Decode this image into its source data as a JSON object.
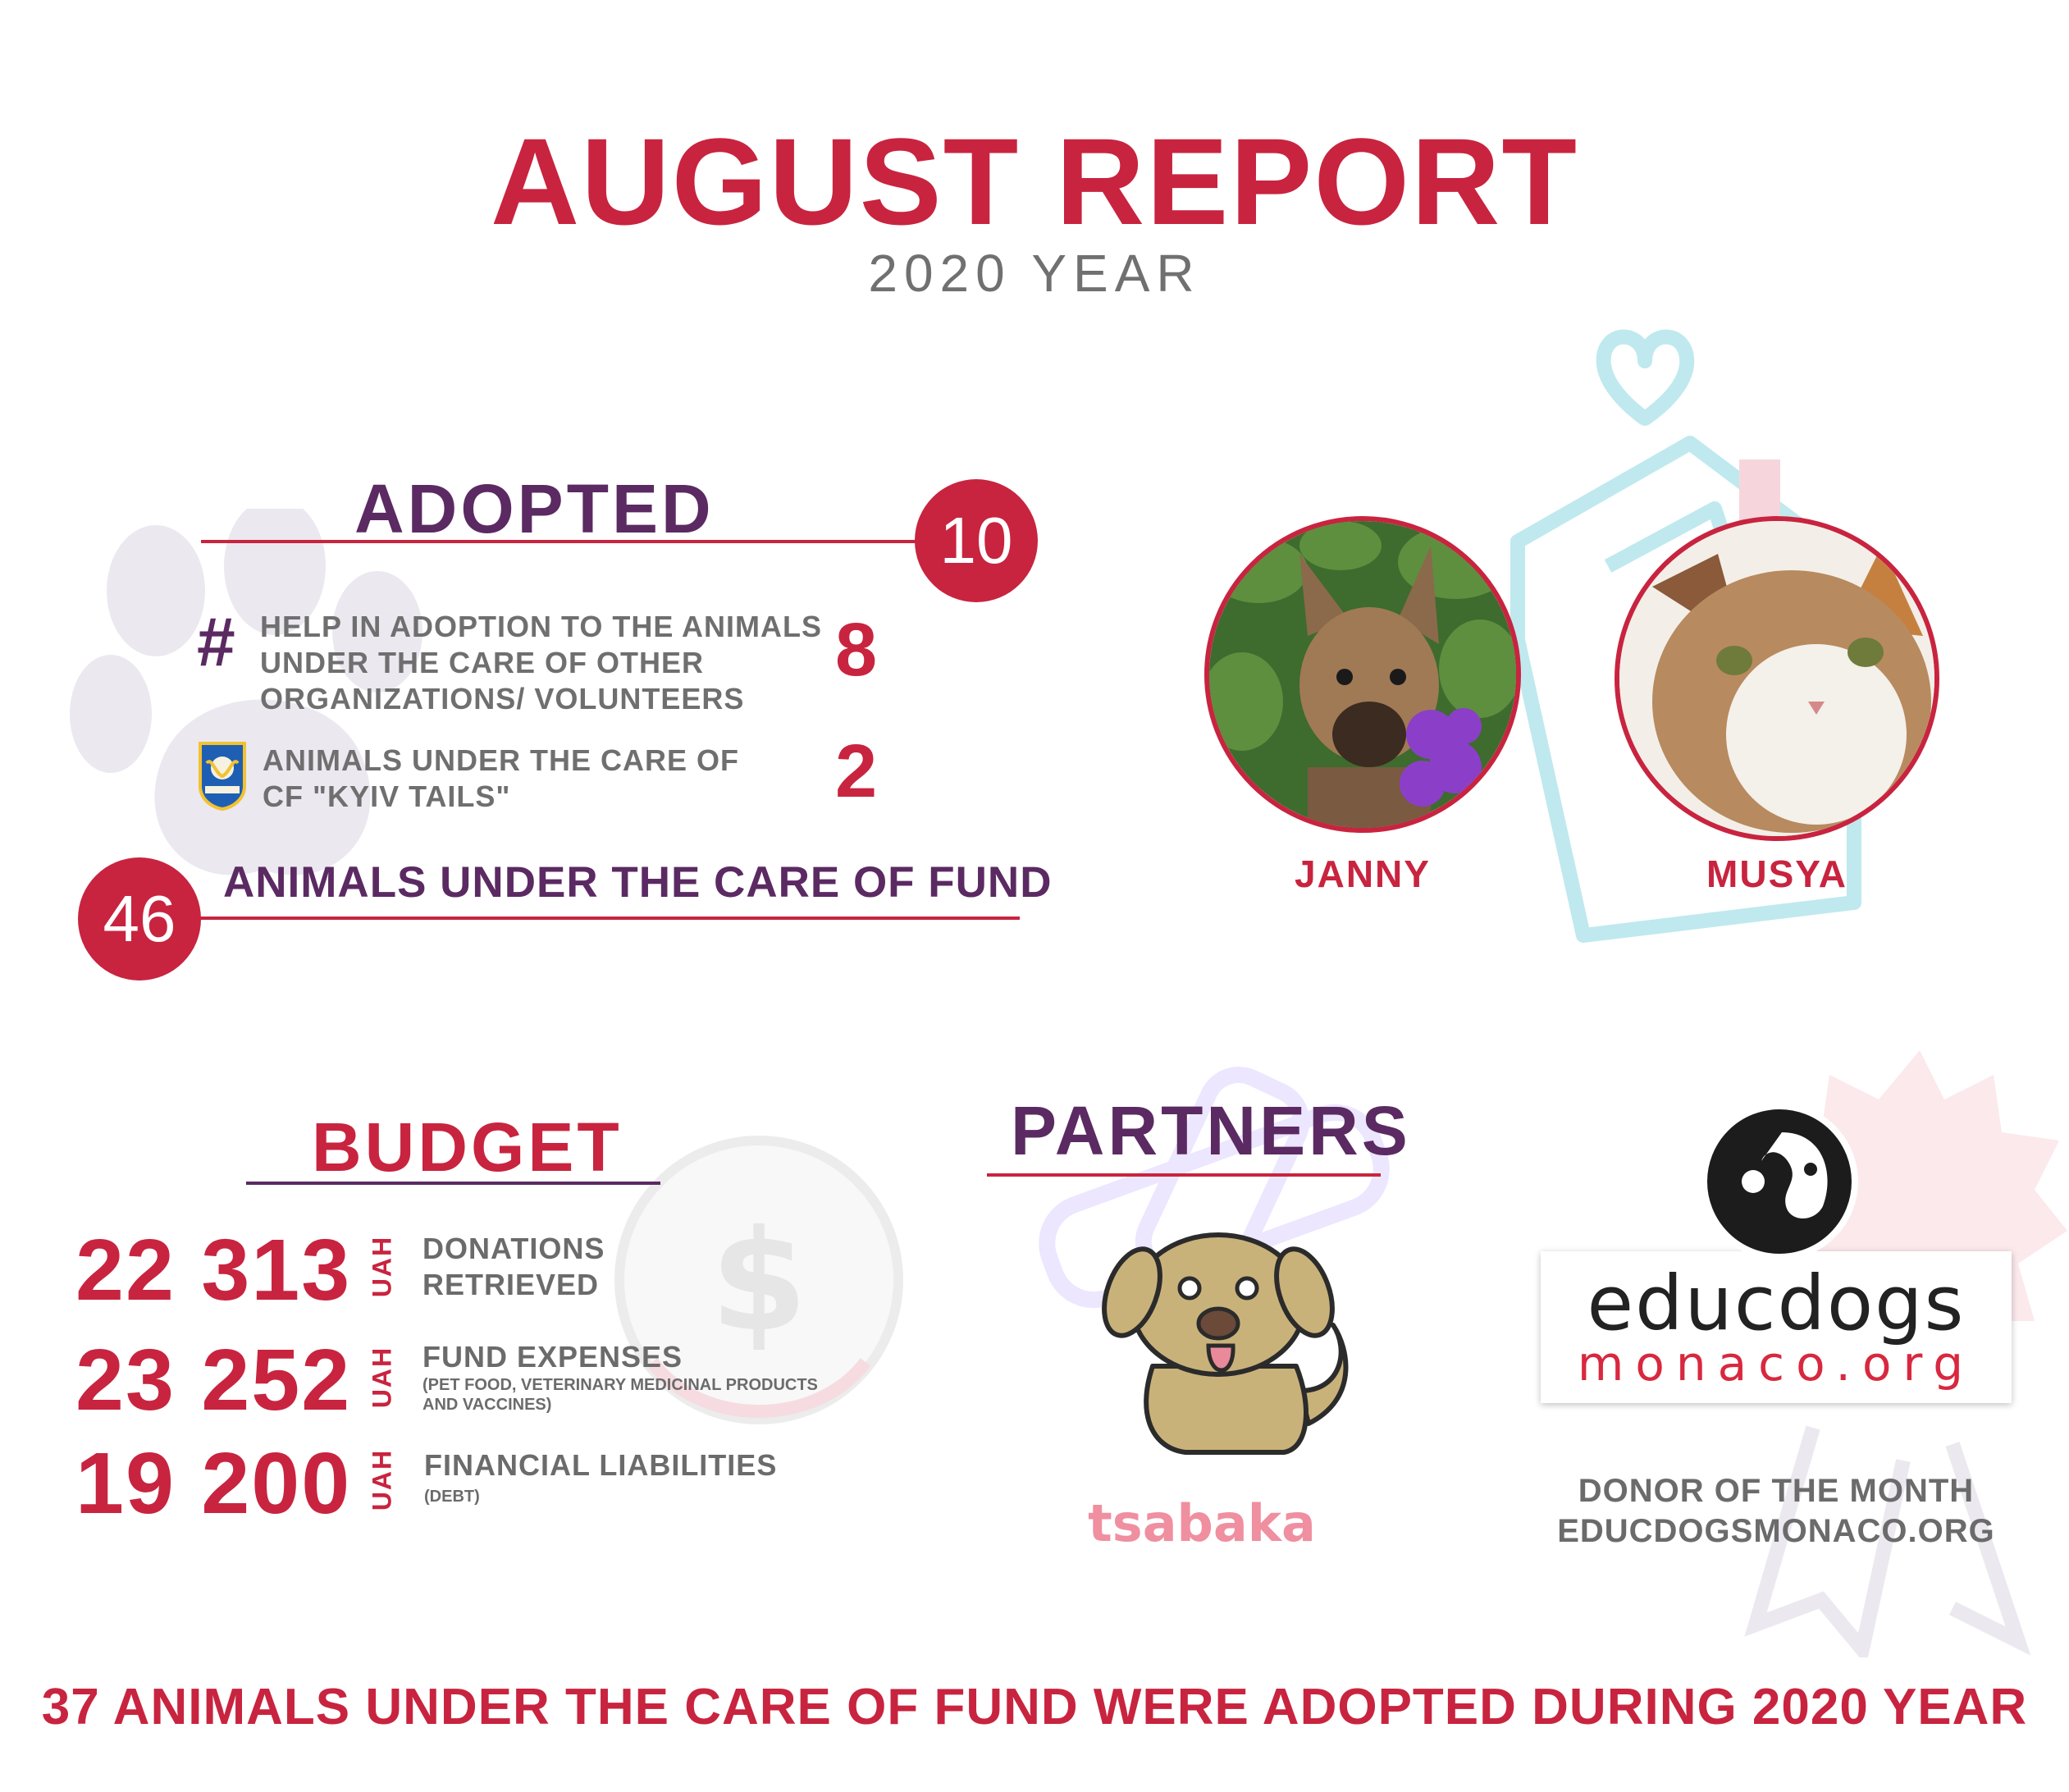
{
  "header": {
    "title": "AUGUST REPORT",
    "subtitle": "2020 YEAR"
  },
  "adopted": {
    "heading": "ADOPTED",
    "total": "10",
    "items": [
      {
        "icon": "hash-icon",
        "label": "HELP IN ADOPTION TO THE ANIMALS UNDER THE CARE OF OTHER ORGANIZATIONS/ VOLUNTEERS",
        "value": "8"
      },
      {
        "icon": "kyiv-tails-logo",
        "label": "ANIMALS UNDER THE CARE OF CF \"KYIV TAILS\"",
        "value": "2"
      }
    ],
    "fund_count": "46",
    "fund_label": "ANIMALS UNDER THE CARE OF FUND"
  },
  "pets": [
    {
      "name": "JANNY"
    },
    {
      "name": "MUSYA"
    }
  ],
  "budget": {
    "heading": "BUDGET",
    "unit": "UAH",
    "rows": [
      {
        "value": "22 313",
        "label": "DONATIONS RETRIEVED",
        "sub": ""
      },
      {
        "value": "23 252",
        "label": "FUND EXPENSES",
        "sub": "(PET FOOD, VETERINARY MEDICINAL PRODUCTS AND VACCINES)"
      },
      {
        "value": "19 200",
        "label": "FINANCIAL LIABILITIES",
        "sub": "(DEBT)"
      }
    ]
  },
  "partners": {
    "heading": "PARTNERS",
    "tsabaka_logo_text": "tsabaka",
    "educdogs_logo_line1": "educdogs",
    "educdogs_logo_line2": "monaco.org",
    "donor_label": "DONOR OF THE MONTH",
    "donor_site": "EDUCDOGSMONACO.ORG"
  },
  "footer": {
    "text": "37 ANIMALS UNDER THE CARE OF FUND WERE ADOPTED DURING 2020 YEAR"
  },
  "colors": {
    "accent_red": "#c8243f",
    "accent_purple": "#5b2a62",
    "text_gray": "#6b6b6b"
  }
}
